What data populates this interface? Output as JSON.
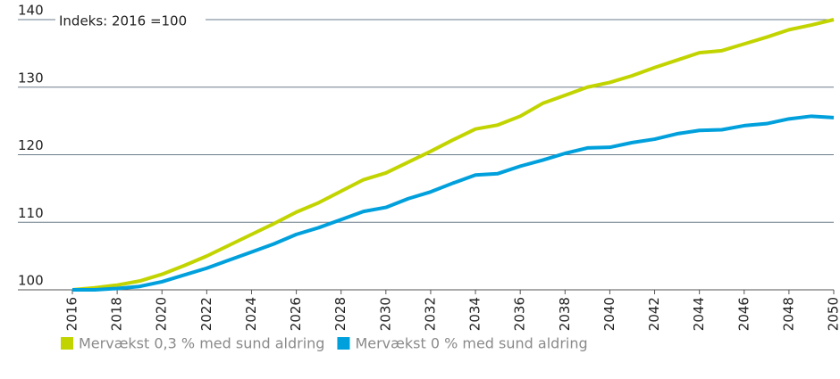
{
  "chart_data": {
    "type": "line",
    "annotation": "Indeks: 2016 =100",
    "x": [
      2016,
      2017,
      2018,
      2019,
      2020,
      2021,
      2022,
      2023,
      2024,
      2025,
      2026,
      2027,
      2028,
      2029,
      2030,
      2031,
      2032,
      2033,
      2034,
      2035,
      2036,
      2037,
      2038,
      2039,
      2040,
      2041,
      2042,
      2043,
      2044,
      2045,
      2046,
      2047,
      2048,
      2049,
      2050
    ],
    "series": [
      {
        "name": "Mervækst 0,3 % med sund aldring",
        "color": "#c2d400",
        "values": [
          100,
          100.3,
          100.7,
          101.3,
          102.3,
          103.6,
          105.0,
          106.6,
          108.2,
          109.8,
          111.5,
          112.9,
          114.6,
          116.3,
          117.3,
          118.9,
          120.5,
          122.2,
          123.8,
          124.4,
          125.7,
          127.6,
          128.8,
          130.0,
          130.7,
          131.7,
          132.9,
          134.0,
          135.1,
          135.4,
          136.4,
          137.4,
          138.5,
          139.2,
          140.0
        ]
      },
      {
        "name": "Mervækst 0 % med sund aldring",
        "color": "#00a0dc",
        "values": [
          100,
          100,
          100.2,
          100.5,
          101.2,
          102.2,
          103.2,
          104.4,
          105.6,
          106.8,
          108.2,
          109.2,
          110.4,
          111.6,
          112.2,
          113.5,
          114.5,
          115.8,
          117.0,
          117.2,
          118.3,
          119.2,
          120.2,
          121.0,
          121.1,
          121.8,
          122.3,
          123.1,
          123.6,
          123.7,
          124.3,
          124.6,
          125.3,
          125.7,
          125.5
        ]
      }
    ],
    "xlim": [
      2016,
      2050
    ],
    "xticks": [
      2016,
      2018,
      2020,
      2022,
      2024,
      2026,
      2028,
      2030,
      2032,
      2034,
      2036,
      2038,
      2040,
      2042,
      2044,
      2046,
      2048,
      2050
    ],
    "ylim": [
      100,
      140
    ],
    "yticks": [
      100,
      110,
      120,
      130,
      140
    ],
    "grid": true,
    "legend": "bottom-left"
  }
}
